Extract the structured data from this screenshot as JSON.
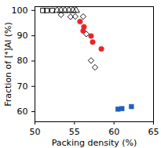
{
  "chart_data": {
    "type": "scatter",
    "x_label": "Packing density (%)",
    "y_label": "Fraction of [⁴]Al (%)",
    "xlim": [
      50,
      65
    ],
    "xticks": [
      50,
      55,
      60,
      65
    ],
    "ylim": [
      56,
      101.5
    ],
    "yticks": [
      60,
      70,
      80,
      90,
      100
    ],
    "grid": false,
    "series": [
      {
        "color": "#000000",
        "marker": "square-open",
        "x": [
          51.0,
          51.5,
          52.2
        ],
        "values": [
          100,
          100,
          100
        ]
      },
      {
        "color": "#000000",
        "marker": "triangle-open",
        "x": [
          52.8,
          53.3,
          53.8,
          54.3,
          54.8,
          55.2
        ],
        "values": [
          100,
          100,
          100,
          100,
          100,
          100
        ]
      },
      {
        "color": "#000000",
        "marker": "diamond-open",
        "x": [
          53.3,
          54.5,
          55.1,
          56.1,
          56.5,
          57.1,
          57.6
        ],
        "values": [
          98.3,
          97.5,
          97.6,
          97.6,
          90.7,
          80.2,
          77.5
        ]
      },
      {
        "color": "#e8262b",
        "marker": "circle",
        "x": [
          55.7,
          56.2,
          56.1,
          57.1,
          57.3,
          58.4
        ],
        "values": [
          95.6,
          93.5,
          91.9,
          89.9,
          87.5,
          84.8
        ]
      },
      {
        "color": "#1f5fbf",
        "marker": "square",
        "x": [
          60.5,
          61.0,
          62.2
        ],
        "values": [
          61.0,
          61.2,
          62.0
        ]
      }
    ]
  }
}
